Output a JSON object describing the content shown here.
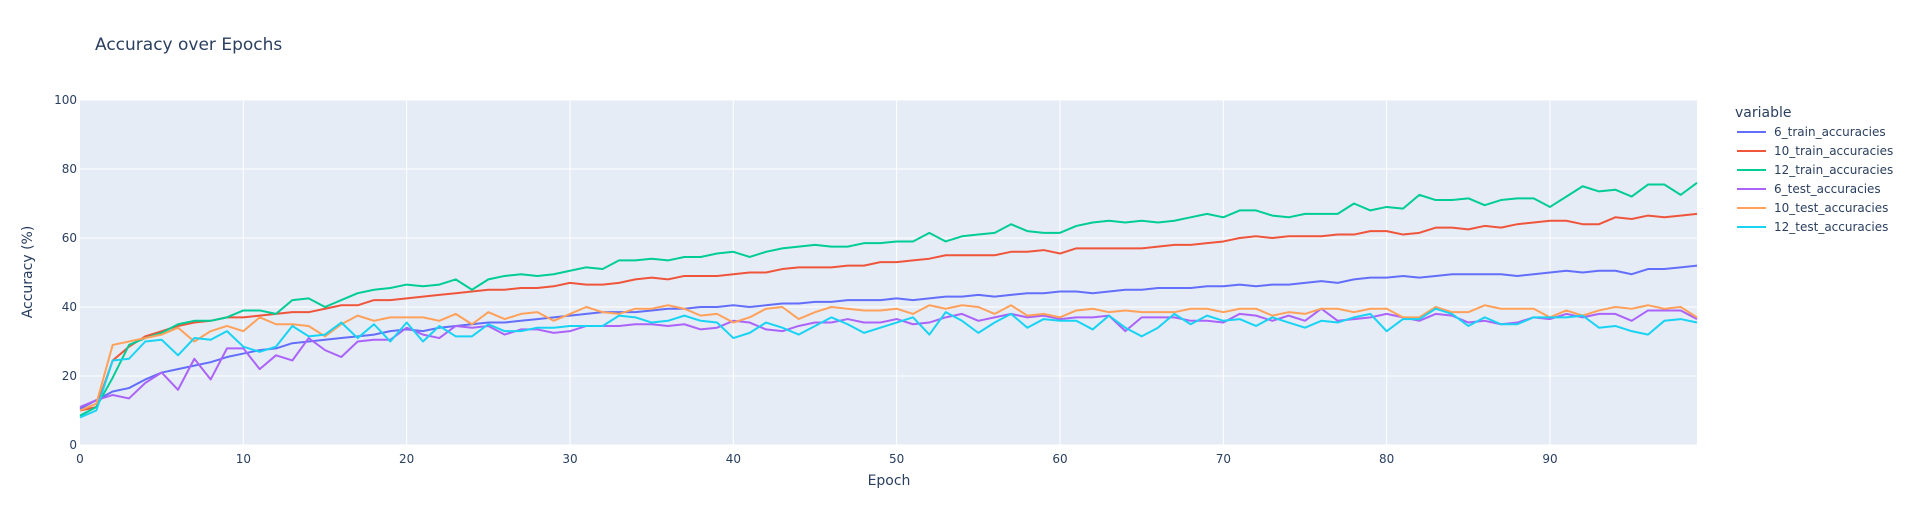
{
  "chart_data": {
    "type": "line",
    "title": "Accuracy over Epochs",
    "xlabel": "Epoch",
    "ylabel": "Accuracy (%)",
    "xlim": [
      0,
      99
    ],
    "ylim": [
      0,
      100
    ],
    "x_ticks": [
      0,
      10,
      20,
      30,
      40,
      50,
      60,
      70,
      80,
      90
    ],
    "y_ticks": [
      0,
      20,
      40,
      60,
      80,
      100
    ],
    "grid": true,
    "legend_title": "variable",
    "legend_position": "right",
    "series": [
      {
        "name": "6_train_accuracies",
        "color": "#636efa",
        "values": [
          10.5,
          13.0,
          15.5,
          16.5,
          19.0,
          21.0,
          22.0,
          23.0,
          24.0,
          25.5,
          26.5,
          27.5,
          28.0,
          29.5,
          30.0,
          30.5,
          31.0,
          31.5,
          32.0,
          33.0,
          33.5,
          33.0,
          34.0,
          34.5,
          35.0,
          35.5,
          35.5,
          36.0,
          36.5,
          37.0,
          37.5,
          38.0,
          38.5,
          38.5,
          38.5,
          39.0,
          39.5,
          39.5,
          40.0,
          40.0,
          40.5,
          40.0,
          40.5,
          41.0,
          41.0,
          41.5,
          41.5,
          42.0,
          42.0,
          42.0,
          42.5,
          42.0,
          42.5,
          43.0,
          43.0,
          43.5,
          43.0,
          43.5,
          44.0,
          44.0,
          44.5,
          44.5,
          44.0,
          44.5,
          45.0,
          45.0,
          45.5,
          45.5,
          45.5,
          46.0,
          46.0,
          46.5,
          46.0,
          46.5,
          46.5,
          47.0,
          47.5,
          47.0,
          48.0,
          48.5,
          48.5,
          49.0,
          48.5,
          49.0,
          49.5,
          49.5,
          49.5,
          49.5,
          49.0,
          49.5,
          50.0,
          50.5,
          50.0,
          50.5,
          50.5,
          49.5,
          51.0,
          51.0,
          51.5,
          52.0
        ]
      },
      {
        "name": "10_train_accuracies",
        "color": "#ef553b",
        "values": [
          10.0,
          11.0,
          24.5,
          28.5,
          31.5,
          33.0,
          34.5,
          35.5,
          36.0,
          37.0,
          37.0,
          37.5,
          38.0,
          38.5,
          38.5,
          39.5,
          40.5,
          40.5,
          42.0,
          42.0,
          42.5,
          43.0,
          43.5,
          44.0,
          44.5,
          45.0,
          45.0,
          45.5,
          45.5,
          46.0,
          47.0,
          46.5,
          46.5,
          47.0,
          48.0,
          48.5,
          48.0,
          49.0,
          49.0,
          49.0,
          49.5,
          50.0,
          50.0,
          51.0,
          51.5,
          51.5,
          51.5,
          52.0,
          52.0,
          53.0,
          53.0,
          53.5,
          54.0,
          55.0,
          55.0,
          55.0,
          55.0,
          56.0,
          56.0,
          56.5,
          55.5,
          57.0,
          57.0,
          57.0,
          57.0,
          57.0,
          57.5,
          58.0,
          58.0,
          58.5,
          59.0,
          60.0,
          60.5,
          60.0,
          60.5,
          60.5,
          60.5,
          61.0,
          61.0,
          62.0,
          62.0,
          61.0,
          61.5,
          63.0,
          63.0,
          62.5,
          63.5,
          63.0,
          64.0,
          64.5,
          65.0,
          65.0,
          64.0,
          64.0,
          66.0,
          65.5,
          66.5,
          66.0,
          66.5,
          67.0
        ]
      },
      {
        "name": "12_train_accuracies",
        "color": "#00cc96",
        "values": [
          8.5,
          11.0,
          19.5,
          29.0,
          31.0,
          32.5,
          35.0,
          36.0,
          36.0,
          37.0,
          39.0,
          39.0,
          38.0,
          42.0,
          42.5,
          40.0,
          42.0,
          44.0,
          45.0,
          45.5,
          46.5,
          46.0,
          46.5,
          48.0,
          45.0,
          48.0,
          49.0,
          49.5,
          49.0,
          49.5,
          50.5,
          51.5,
          51.0,
          53.5,
          53.5,
          54.0,
          53.5,
          54.5,
          54.5,
          55.5,
          56.0,
          54.5,
          56.0,
          57.0,
          57.5,
          58.0,
          57.5,
          57.5,
          58.5,
          58.5,
          59.0,
          59.0,
          61.5,
          59.0,
          60.5,
          61.0,
          61.5,
          64.0,
          62.0,
          61.5,
          61.5,
          63.5,
          64.5,
          65.0,
          64.5,
          65.0,
          64.5,
          65.0,
          66.0,
          67.0,
          66.0,
          68.0,
          68.0,
          66.5,
          66.0,
          67.0,
          67.0,
          67.0,
          70.0,
          68.0,
          69.0,
          68.5,
          72.5,
          71.0,
          71.0,
          71.5,
          69.5,
          71.0,
          71.5,
          71.5,
          69.0,
          72.0,
          75.0,
          73.5,
          74.0,
          72.0,
          75.5,
          75.5,
          72.5,
          76.0
        ]
      },
      {
        "name": "6_test_accuracies",
        "color": "#ab63fa",
        "values": [
          11.0,
          13.0,
          14.5,
          13.5,
          18.0,
          21.0,
          16.0,
          25.0,
          19.0,
          28.0,
          28.0,
          22.0,
          26.0,
          24.5,
          31.0,
          27.5,
          25.5,
          30.0,
          30.5,
          30.5,
          34.0,
          32.0,
          31.0,
          34.5,
          34.0,
          34.5,
          32.0,
          33.5,
          33.5,
          32.5,
          33.0,
          34.5,
          34.5,
          34.5,
          35.0,
          35.0,
          34.5,
          35.0,
          33.5,
          34.0,
          36.0,
          35.5,
          33.5,
          33.0,
          34.5,
          35.5,
          35.5,
          36.5,
          35.5,
          35.5,
          36.5,
          35.0,
          35.5,
          37.0,
          38.0,
          36.0,
          37.0,
          38.0,
          37.0,
          37.5,
          36.5,
          37.0,
          37.0,
          37.5,
          33.0,
          37.0,
          37.0,
          37.0,
          36.0,
          36.0,
          35.5,
          38.0,
          37.5,
          36.0,
          37.5,
          36.0,
          39.5,
          36.0,
          36.5,
          37.0,
          38.0,
          37.0,
          36.0,
          38.0,
          37.5,
          35.5,
          36.0,
          35.0,
          35.5,
          37.0,
          36.5,
          38.0,
          37.0,
          38.0,
          38.0,
          36.0,
          39.0,
          39.0,
          39.0,
          36.5
        ]
      },
      {
        "name": "10_test_accuracies",
        "color": "#ffa15a",
        "values": [
          10.0,
          12.0,
          29.0,
          30.0,
          31.0,
          32.0,
          34.0,
          30.0,
          33.0,
          34.5,
          33.0,
          37.0,
          35.0,
          35.0,
          34.5,
          31.5,
          35.0,
          37.5,
          36.0,
          37.0,
          37.0,
          37.0,
          36.0,
          38.0,
          35.0,
          38.5,
          36.5,
          38.0,
          38.5,
          36.0,
          38.0,
          40.0,
          38.5,
          38.0,
          39.5,
          39.5,
          40.5,
          39.5,
          37.5,
          38.0,
          35.5,
          37.0,
          39.5,
          40.0,
          36.5,
          38.5,
          40.0,
          39.5,
          39.0,
          39.0,
          39.5,
          38.0,
          40.5,
          39.5,
          40.5,
          40.0,
          38.0,
          40.5,
          37.5,
          38.0,
          37.0,
          39.0,
          39.5,
          38.5,
          39.0,
          38.5,
          38.5,
          38.5,
          39.5,
          39.5,
          38.5,
          39.5,
          39.5,
          37.5,
          38.5,
          38.0,
          39.5,
          39.5,
          38.5,
          39.5,
          39.5,
          37.0,
          37.0,
          40.0,
          38.5,
          38.5,
          40.5,
          39.5,
          39.5,
          39.5,
          37.0,
          39.0,
          37.5,
          39.0,
          40.0,
          39.5,
          40.5,
          39.5,
          40.0,
          37.0
        ]
      },
      {
        "name": "12_test_accuracies",
        "color": "#19d3f3",
        "values": [
          8.0,
          10.0,
          24.5,
          25.0,
          30.0,
          30.5,
          26.0,
          31.0,
          30.5,
          33.0,
          28.5,
          27.0,
          28.5,
          34.5,
          31.5,
          32.0,
          35.5,
          31.0,
          35.0,
          30.0,
          35.5,
          30.0,
          34.5,
          31.5,
          31.5,
          35.0,
          33.0,
          33.0,
          34.0,
          34.0,
          34.5,
          34.5,
          34.5,
          37.5,
          37.0,
          35.5,
          36.0,
          37.5,
          36.0,
          35.5,
          31.0,
          32.5,
          35.5,
          34.0,
          32.0,
          34.5,
          37.0,
          35.0,
          32.5,
          34.0,
          35.5,
          37.0,
          32.0,
          38.5,
          36.0,
          32.5,
          35.5,
          38.0,
          34.0,
          36.5,
          36.0,
          36.0,
          33.5,
          37.5,
          34.0,
          31.5,
          34.0,
          38.0,
          35.0,
          37.5,
          36.0,
          36.5,
          34.5,
          37.0,
          35.5,
          34.0,
          36.0,
          35.5,
          37.0,
          38.0,
          33.0,
          36.5,
          36.5,
          39.5,
          38.0,
          34.5,
          37.0,
          35.0,
          35.0,
          37.0,
          37.0,
          37.0,
          37.5,
          34.0,
          34.5,
          33.0,
          32.0,
          36.0,
          36.5,
          35.5
        ]
      }
    ]
  }
}
